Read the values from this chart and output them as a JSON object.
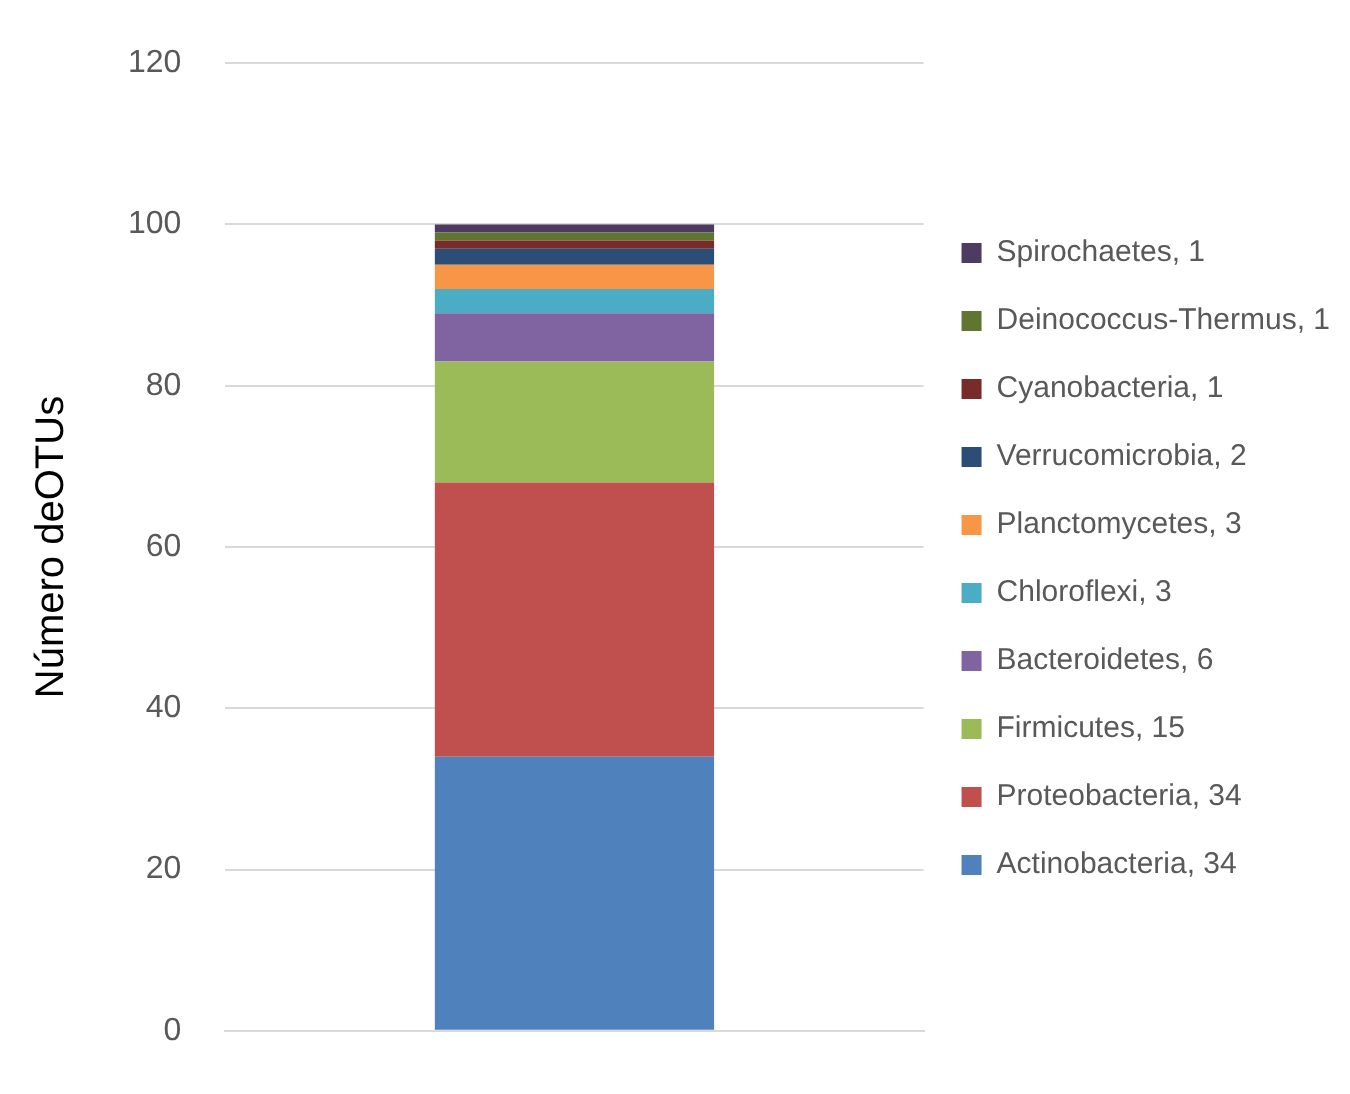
{
  "chart_data": {
    "type": "bar",
    "stacked": true,
    "ylabel": "Número deOTUs",
    "categories": [
      null
    ],
    "series": [
      {
        "name": "Actinobacteria, 34",
        "color": "#4f81bd",
        "values": [
          34
        ]
      },
      {
        "name": "Proteobacteria, 34",
        "color": "#c0504d",
        "values": [
          34
        ]
      },
      {
        "name": "Firmicutes, 15",
        "color": "#9bbb59",
        "values": [
          15
        ]
      },
      {
        "name": "Bacteroidetes, 6",
        "color": "#8064a2",
        "values": [
          6
        ]
      },
      {
        "name": "Chloroflexi, 3",
        "color": "#4bacc6",
        "values": [
          3
        ]
      },
      {
        "name": "Planctomycetes, 3",
        "color": "#f79646",
        "values": [
          3
        ]
      },
      {
        "name": "Verrucomicrobia, 2",
        "color": "#2c4d75",
        "values": [
          2
        ]
      },
      {
        "name": "Cyanobacteria, 1",
        "color": "#772c2a",
        "values": [
          1
        ]
      },
      {
        "name": "Deinococcus-Thermus, 1",
        "color": "#5f7530",
        "values": [
          1
        ]
      },
      {
        "name": "Spirochaetes, 1",
        "color": "#4d3b62",
        "values": [
          1
        ]
      }
    ],
    "ylim": [
      0,
      120
    ],
    "yticks": [
      0,
      20,
      40,
      60,
      80,
      100,
      120
    ],
    "grid": "y",
    "legend": "right"
  }
}
